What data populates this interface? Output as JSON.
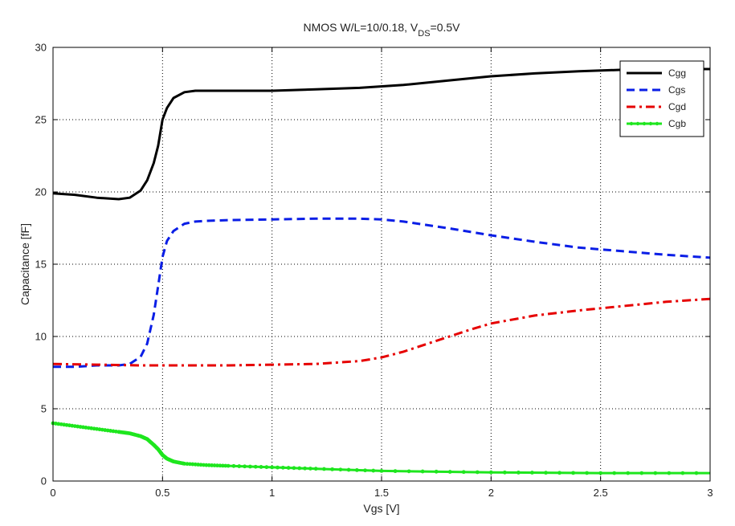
{
  "chart_data": {
    "type": "line",
    "title": {
      "main": "NMOS W/L=10/0.18, V",
      "sub": "DS",
      "tail": "=0.5V"
    },
    "xlabel": "Vgs [V]",
    "ylabel": "Capacitance [fF]",
    "xlim": [
      0,
      3
    ],
    "ylim": [
      0,
      30
    ],
    "xticks": [
      0,
      0.5,
      1,
      1.5,
      2,
      2.5,
      3
    ],
    "xtick_labels": [
      "0",
      "0.5",
      "1",
      "1.5",
      "2",
      "2.5",
      "3"
    ],
    "yticks": [
      0,
      5,
      10,
      15,
      20,
      25,
      30
    ],
    "ytick_labels": [
      "0",
      "5",
      "10",
      "15",
      "20",
      "25",
      "30"
    ],
    "grid": true,
    "legend_position": "top-right",
    "series": [
      {
        "name": "Cgg",
        "color": "#000000",
        "style": "solid",
        "x": [
          0,
          0.1,
          0.2,
          0.3,
          0.35,
          0.4,
          0.43,
          0.46,
          0.48,
          0.5,
          0.52,
          0.55,
          0.6,
          0.65,
          0.7,
          0.8,
          1.0,
          1.2,
          1.4,
          1.6,
          1.8,
          2.0,
          2.2,
          2.4,
          2.6,
          2.8,
          3.0
        ],
        "y": [
          19.9,
          19.8,
          19.6,
          19.5,
          19.6,
          20.1,
          20.8,
          22.0,
          23.2,
          25.0,
          25.8,
          26.5,
          26.9,
          27.0,
          27.0,
          27.0,
          27.0,
          27.1,
          27.2,
          27.4,
          27.7,
          28.0,
          28.2,
          28.35,
          28.45,
          28.5,
          28.5
        ]
      },
      {
        "name": "Cgs",
        "color": "#0a1ee6",
        "style": "dashed",
        "x": [
          0,
          0.1,
          0.2,
          0.3,
          0.35,
          0.4,
          0.43,
          0.46,
          0.48,
          0.5,
          0.52,
          0.55,
          0.6,
          0.65,
          0.7,
          0.8,
          1.0,
          1.2,
          1.4,
          1.5,
          1.6,
          1.8,
          2.0,
          2.2,
          2.4,
          2.6,
          2.8,
          3.0
        ],
        "y": [
          7.9,
          7.9,
          8.0,
          8.0,
          8.1,
          8.6,
          9.5,
          11.5,
          13.5,
          15.5,
          16.6,
          17.3,
          17.8,
          17.95,
          18.0,
          18.05,
          18.1,
          18.15,
          18.15,
          18.1,
          17.95,
          17.5,
          17.0,
          16.55,
          16.15,
          15.9,
          15.65,
          15.45
        ]
      },
      {
        "name": "Cgd",
        "color": "#e60000",
        "style": "dashdot",
        "x": [
          0,
          0.2,
          0.4,
          0.6,
          0.8,
          1.0,
          1.2,
          1.4,
          1.5,
          1.6,
          1.7,
          1.8,
          1.9,
          2.0,
          2.2,
          2.4,
          2.6,
          2.8,
          3.0
        ],
        "y": [
          8.1,
          8.05,
          8.0,
          8.0,
          8.0,
          8.05,
          8.1,
          8.3,
          8.55,
          8.95,
          9.45,
          9.95,
          10.45,
          10.9,
          11.45,
          11.8,
          12.1,
          12.4,
          12.6
        ]
      },
      {
        "name": "Cgb",
        "color": "#1ee61e",
        "style": "solid-markers",
        "x": [
          0,
          0.1,
          0.2,
          0.3,
          0.35,
          0.4,
          0.43,
          0.46,
          0.48,
          0.5,
          0.52,
          0.55,
          0.6,
          0.7,
          0.8,
          1.0,
          1.2,
          1.5,
          2.0,
          2.5,
          3.0
        ],
        "y": [
          4.0,
          3.8,
          3.6,
          3.4,
          3.3,
          3.1,
          2.9,
          2.5,
          2.2,
          1.8,
          1.55,
          1.35,
          1.2,
          1.1,
          1.05,
          0.95,
          0.85,
          0.7,
          0.6,
          0.55,
          0.55
        ]
      }
    ]
  }
}
